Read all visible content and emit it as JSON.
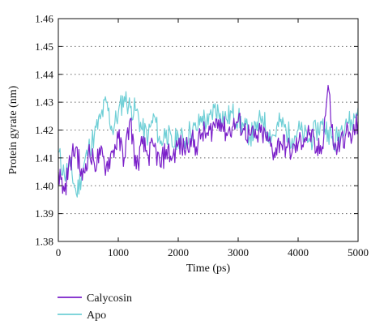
{
  "chart_data": {
    "type": "line",
    "title": "",
    "xlabel": "Time (ps)",
    "ylabel": "Protein gyrate (nm)",
    "xlim": [
      0,
      5000
    ],
    "ylim": [
      1.38,
      1.46
    ],
    "x_ticks": [
      0,
      1000,
      2000,
      3000,
      4000,
      5000
    ],
    "x_tick_labels": [
      "0",
      "1000",
      "2000",
      "3000",
      "4000",
      "5000"
    ],
    "y_ticks": [
      1.38,
      1.39,
      1.4,
      1.41,
      1.42,
      1.43,
      1.44,
      1.45,
      1.46
    ],
    "y_tick_labels": [
      "1.38",
      "1.39",
      "1.40",
      "1.41",
      "1.42",
      "1.43",
      "1.44",
      "1.45",
      "1.46"
    ],
    "grid": "horizontal dotted",
    "legend_position": "bottom-left, below plot",
    "x": [
      0,
      100,
      200,
      300,
      400,
      500,
      600,
      700,
      800,
      900,
      1000,
      1100,
      1200,
      1300,
      1400,
      1500,
      1600,
      1700,
      1800,
      1900,
      2000,
      2100,
      2200,
      2300,
      2400,
      2500,
      2600,
      2700,
      2800,
      2900,
      3000,
      3100,
      3200,
      3300,
      3400,
      3500,
      3600,
      3700,
      3800,
      3900,
      4000,
      4100,
      4200,
      4300,
      4400,
      4500,
      4600,
      4700,
      4800,
      4900,
      5000
    ],
    "series": [
      {
        "name": "Calycosin",
        "color": "#7a1fc9",
        "values": [
          1.405,
          1.398,
          1.409,
          1.414,
          1.402,
          1.412,
          1.408,
          1.411,
          1.407,
          1.412,
          1.417,
          1.41,
          1.424,
          1.406,
          1.415,
          1.411,
          1.414,
          1.407,
          1.413,
          1.41,
          1.415,
          1.413,
          1.417,
          1.414,
          1.419,
          1.418,
          1.422,
          1.424,
          1.419,
          1.421,
          1.423,
          1.42,
          1.418,
          1.417,
          1.419,
          1.416,
          1.412,
          1.416,
          1.414,
          1.412,
          1.415,
          1.417,
          1.419,
          1.412,
          1.414,
          1.436,
          1.413,
          1.415,
          1.419,
          1.417,
          1.423
        ]
      },
      {
        "name": "Apo",
        "color": "#6fcfd6",
        "values": [
          1.412,
          1.404,
          1.407,
          1.397,
          1.405,
          1.413,
          1.418,
          1.424,
          1.43,
          1.42,
          1.426,
          1.432,
          1.428,
          1.427,
          1.42,
          1.418,
          1.425,
          1.415,
          1.42,
          1.414,
          1.418,
          1.416,
          1.42,
          1.42,
          1.425,
          1.422,
          1.428,
          1.426,
          1.424,
          1.426,
          1.424,
          1.421,
          1.418,
          1.42,
          1.425,
          1.419,
          1.418,
          1.423,
          1.42,
          1.417,
          1.42,
          1.418,
          1.416,
          1.42,
          1.422,
          1.42,
          1.415,
          1.42,
          1.424,
          1.422,
          1.428
        ]
      }
    ]
  }
}
